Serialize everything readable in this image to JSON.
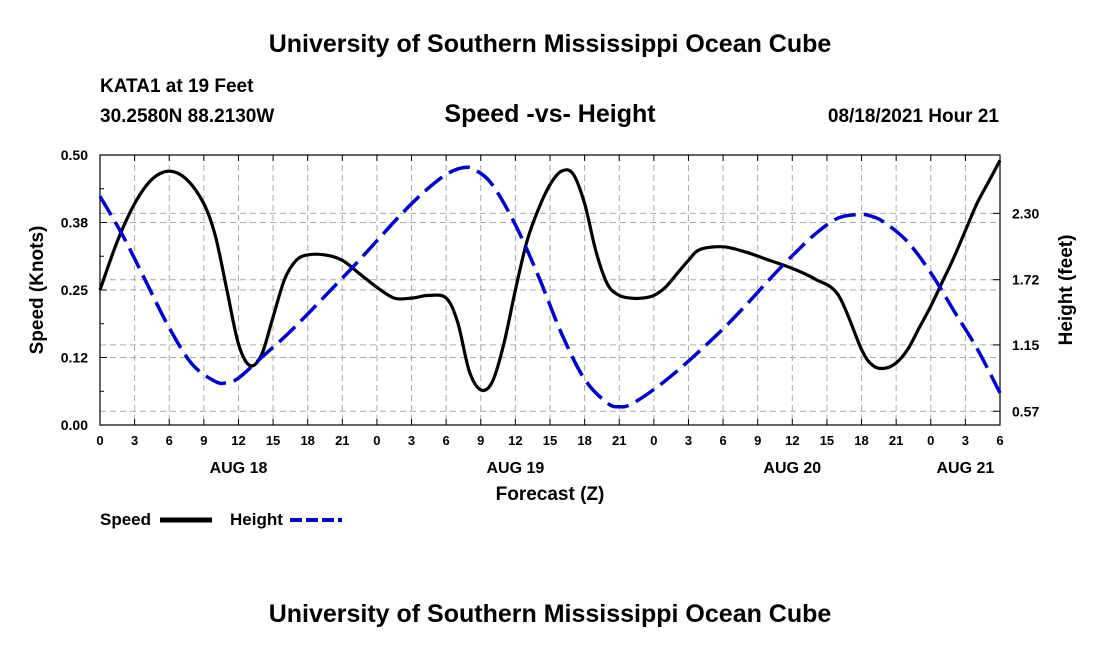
{
  "header": {
    "title": "University of Southern Mississippi Ocean Cube",
    "station": "KATA1 at 19 Feet",
    "coords": "30.2580N  88.2130W",
    "chart_title": "Speed -vs- Height",
    "datetime": "08/18/2021 Hour 21"
  },
  "footer": {
    "title": "University of Southern Mississippi Ocean Cube"
  },
  "chart_data": {
    "type": "line",
    "title": "Speed -vs- Height",
    "xlabel": "Forecast (Z)",
    "ylabel": "Speed (Knots)",
    "y2label": "Height (feet)",
    "x_ticks": [
      "0",
      "3",
      "6",
      "9",
      "12",
      "15",
      "18",
      "21",
      "0",
      "3",
      "6",
      "9",
      "12",
      "15",
      "18",
      "21",
      "0",
      "3",
      "6",
      "9",
      "12",
      "15",
      "18",
      "21",
      "0",
      "3",
      "6"
    ],
    "day_labels": [
      {
        "label": "AUG 18",
        "hour": 12
      },
      {
        "label": "AUG 19",
        "hour": 36
      },
      {
        "label": "AUG 20",
        "hour": 60
      },
      {
        "label": "AUG 21",
        "hour": 75
      }
    ],
    "xlim": [
      0,
      78
    ],
    "ylim": [
      0,
      0.5
    ],
    "y_ticks": [
      "0.00",
      "0.12",
      "0.25",
      "0.38",
      "0.50"
    ],
    "y2lim": [
      0.45,
      2.81
    ],
    "y2_ticks": [
      "0.57",
      "1.15",
      "1.72",
      "2.30"
    ],
    "grid": true,
    "series": [
      {
        "name": "Speed",
        "axis": "left",
        "color": "#000000",
        "dash": "solid",
        "x": [
          0,
          1.5,
          3,
          4.5,
          6,
          7.5,
          9,
          10,
          11,
          12,
          13,
          14,
          15,
          16,
          17,
          18,
          19.5,
          21,
          22.5,
          24,
          25.5,
          27,
          28.5,
          30,
          31,
          32,
          33,
          34,
          35,
          36,
          37,
          38,
          39,
          40,
          41,
          42,
          43,
          44,
          45,
          46,
          47,
          48,
          49,
          50,
          51,
          52,
          54,
          56,
          58,
          60,
          62,
          64,
          66,
          67,
          68,
          69,
          70,
          71,
          72,
          73,
          74,
          75,
          76,
          77,
          78
        ],
        "y": [
          0.25,
          0.34,
          0.41,
          0.455,
          0.47,
          0.455,
          0.41,
          0.35,
          0.25,
          0.15,
          0.11,
          0.13,
          0.2,
          0.27,
          0.305,
          0.315,
          0.315,
          0.305,
          0.28,
          0.255,
          0.235,
          0.235,
          0.24,
          0.235,
          0.19,
          0.1,
          0.065,
          0.08,
          0.15,
          0.25,
          0.34,
          0.4,
          0.445,
          0.47,
          0.465,
          0.41,
          0.32,
          0.26,
          0.24,
          0.235,
          0.235,
          0.24,
          0.255,
          0.28,
          0.305,
          0.325,
          0.33,
          0.32,
          0.305,
          0.29,
          0.27,
          0.24,
          0.14,
          0.11,
          0.105,
          0.115,
          0.14,
          0.18,
          0.22,
          0.265,
          0.31,
          0.36,
          0.41,
          0.45,
          0.49
        ]
      },
      {
        "name": "Height",
        "axis": "right",
        "color": "#0000cc",
        "dash": "dashed",
        "x": [
          0,
          2,
          4,
          6,
          8,
          10,
          11,
          12,
          14,
          16,
          18,
          20,
          22,
          24,
          26,
          28,
          30,
          31.5,
          32.5,
          34,
          36,
          38,
          40,
          42,
          44,
          45,
          46,
          48,
          50,
          52,
          54,
          56,
          58,
          60,
          62,
          64,
          66,
          67,
          68,
          70,
          72,
          74,
          76,
          78
        ],
        "y": [
          2.45,
          2.1,
          1.7,
          1.3,
          0.98,
          0.83,
          0.82,
          0.86,
          1.04,
          1.22,
          1.42,
          1.63,
          1.84,
          2.06,
          2.28,
          2.48,
          2.64,
          2.7,
          2.68,
          2.55,
          2.2,
          1.75,
          1.25,
          0.85,
          0.64,
          0.61,
          0.63,
          0.76,
          0.92,
          1.1,
          1.29,
          1.5,
          1.72,
          1.93,
          2.12,
          2.26,
          2.29,
          2.27,
          2.22,
          2.05,
          1.78,
          1.45,
          1.12,
          0.73
        ]
      }
    ]
  }
}
